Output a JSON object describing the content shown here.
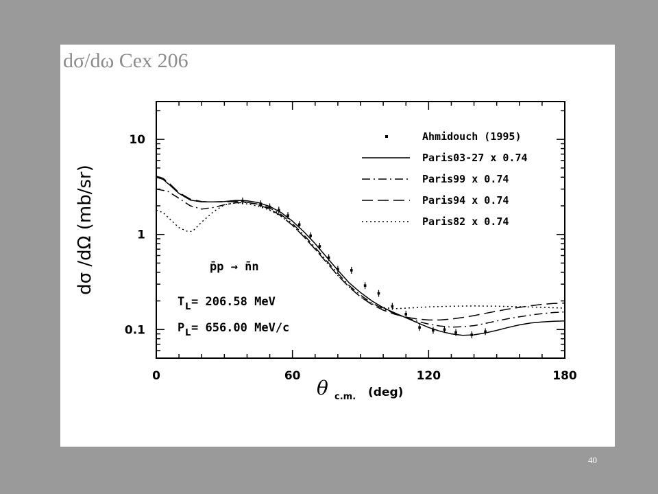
{
  "slide": {
    "title": "dσ/dω  Cex 206",
    "page_number": "40"
  },
  "chart_data": {
    "type": "line",
    "title": "",
    "xlabel": "θ",
    "xlabel_sub": "c.m.",
    "xlabel_unit": "(deg)",
    "ylabel": "dσ /dΩ  (mb/sr)",
    "xlim": [
      0,
      180
    ],
    "ylim": [
      0.05,
      25
    ],
    "yscale": "log",
    "x_ticks": [
      0,
      60,
      120,
      180
    ],
    "x_tick_labels": [
      "0",
      "60",
      "120",
      "180"
    ],
    "y_ticks": [
      0.1,
      1,
      10
    ],
    "y_tick_labels": [
      "0.1",
      "1",
      "10"
    ],
    "legend_position": "top-right",
    "annotations": {
      "reaction": "p̄p → n̄n",
      "tl_label": "T",
      "tl_sub": "L",
      "tl_value": "= 206.58 MeV",
      "pl_label": "P",
      "pl_sub": "L",
      "pl_value": "= 656.00 MeV/c"
    },
    "series": [
      {
        "name": "Ahmidouch (1995)",
        "kind": "points",
        "x": [
          38,
          46,
          50,
          54,
          58,
          63,
          68,
          72,
          76,
          80,
          86,
          92,
          98,
          104,
          110,
          116,
          122,
          127,
          132,
          139,
          145
        ],
        "y": [
          2.25,
          2.1,
          1.95,
          1.8,
          1.58,
          1.27,
          0.97,
          0.75,
          0.57,
          0.43,
          0.42,
          0.29,
          0.24,
          0.175,
          0.145,
          0.105,
          0.098,
          0.1,
          0.093,
          0.088,
          0.095
        ]
      },
      {
        "name": "Paris03-27 x 0.74",
        "dash": "solid",
        "x": [
          0,
          3,
          6,
          10,
          15,
          20,
          25,
          30,
          35,
          40,
          45,
          50,
          55,
          60,
          65,
          70,
          75,
          80,
          85,
          90,
          95,
          100,
          105,
          110,
          115,
          120,
          125,
          130,
          135,
          140,
          145,
          150,
          155,
          160,
          165,
          170,
          175,
          180
        ],
        "y": [
          4.0,
          3.8,
          3.3,
          2.7,
          2.3,
          2.2,
          2.2,
          2.22,
          2.28,
          2.26,
          2.16,
          1.97,
          1.7,
          1.38,
          1.07,
          0.8,
          0.58,
          0.42,
          0.31,
          0.245,
          0.2,
          0.17,
          0.15,
          0.133,
          0.118,
          0.105,
          0.096,
          0.09,
          0.087,
          0.088,
          0.092,
          0.098,
          0.105,
          0.112,
          0.117,
          0.12,
          0.122,
          0.123
        ]
      },
      {
        "name": "Paris99 x 0.74",
        "dash": "dashdot",
        "x": [
          0,
          5,
          10,
          15,
          20,
          25,
          30,
          35,
          40,
          45,
          50,
          55,
          60,
          65,
          70,
          75,
          80,
          85,
          90,
          95,
          100,
          105,
          110,
          115,
          120,
          125,
          130,
          135,
          140,
          145,
          150,
          155,
          160,
          165,
          170,
          175,
          180
        ],
        "y": [
          3.0,
          2.85,
          2.4,
          2.0,
          1.85,
          1.92,
          2.05,
          2.15,
          2.17,
          2.08,
          1.9,
          1.62,
          1.3,
          0.99,
          0.73,
          0.53,
          0.39,
          0.29,
          0.23,
          0.19,
          0.165,
          0.147,
          0.133,
          0.122,
          0.114,
          0.109,
          0.106,
          0.107,
          0.11,
          0.116,
          0.123,
          0.13,
          0.136,
          0.142,
          0.147,
          0.151,
          0.153
        ]
      },
      {
        "name": "Paris94 x 0.74",
        "dash": "longdash",
        "x": [
          0,
          3,
          6,
          10,
          15,
          20,
          25,
          30,
          35,
          40,
          45,
          50,
          55,
          60,
          65,
          70,
          75,
          80,
          85,
          90,
          95,
          100,
          105,
          110,
          115,
          120,
          125,
          130,
          135,
          140,
          145,
          150,
          155,
          160,
          165,
          170,
          175,
          180
        ],
        "y": [
          4.1,
          3.9,
          3.4,
          2.75,
          2.35,
          2.22,
          2.2,
          2.2,
          2.22,
          2.18,
          2.05,
          1.85,
          1.57,
          1.25,
          0.95,
          0.7,
          0.51,
          0.37,
          0.28,
          0.22,
          0.183,
          0.16,
          0.145,
          0.135,
          0.129,
          0.126,
          0.126,
          0.129,
          0.134,
          0.14,
          0.148,
          0.156,
          0.164,
          0.171,
          0.178,
          0.184,
          0.188,
          0.19
        ]
      },
      {
        "name": "Paris82 x 0.74",
        "dash": "dotted",
        "x": [
          0,
          3,
          6,
          10,
          14,
          16,
          20,
          25,
          30,
          35,
          40,
          45,
          50,
          55,
          60,
          65,
          70,
          75,
          80,
          85,
          90,
          95,
          100,
          105,
          110,
          120,
          130,
          140,
          150,
          160,
          170,
          180
        ],
        "y": [
          1.8,
          1.7,
          1.45,
          1.18,
          1.07,
          1.08,
          1.35,
          1.72,
          2.05,
          2.15,
          2.1,
          1.98,
          1.8,
          1.55,
          1.25,
          0.95,
          0.7,
          0.51,
          0.37,
          0.28,
          0.22,
          0.186,
          0.17,
          0.166,
          0.168,
          0.173,
          0.176,
          0.177,
          0.176,
          0.174,
          0.171,
          0.168
        ]
      }
    ]
  }
}
